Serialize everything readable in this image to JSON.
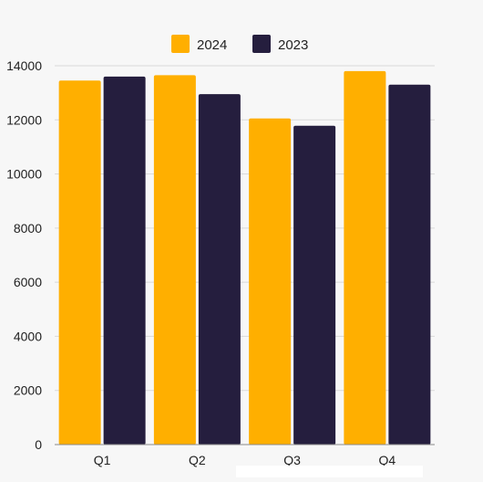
{
  "chart_data": {
    "type": "bar",
    "categories": [
      "Q1",
      "Q2",
      "Q3",
      "Q4"
    ],
    "series": [
      {
        "name": "2024",
        "color": "#ffaf00",
        "values": [
          13450,
          13650,
          12050,
          13800
        ]
      },
      {
        "name": "2023",
        "color": "#251e3e",
        "values": [
          13600,
          12950,
          11780,
          13300
        ]
      }
    ],
    "yticks": [
      "0",
      "2000",
      "4000",
      "6000",
      "8000",
      "10000",
      "12000",
      "14000"
    ],
    "ylim": [
      0,
      14000
    ],
    "grid": true,
    "legend_position": "top-center",
    "title": "",
    "xlabel": "",
    "ylabel": ""
  }
}
